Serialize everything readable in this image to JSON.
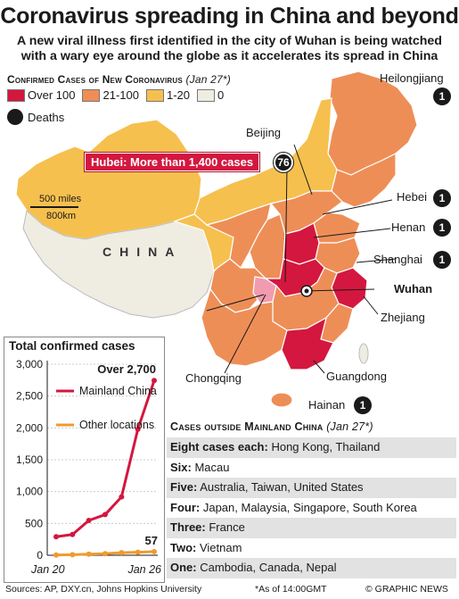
{
  "header": {
    "title": "Coronavirus spreading in China and beyond",
    "subtitle": "A new viral illness first identified in the city of Wuhan is being watched with a wary eye around the globe as it accelerates its spread in China"
  },
  "legend": {
    "title": "Confirmed Cases of New Coronavirus",
    "date": "(Jan 27*)",
    "items": [
      {
        "label": "Over 100",
        "color": "#d4173f"
      },
      {
        "label": "21-100",
        "color": "#ee8e57"
      },
      {
        "label": "1-20",
        "color": "#f6c04e"
      },
      {
        "label": "0",
        "color": "#efece2"
      }
    ],
    "deaths_label": "Deaths"
  },
  "map": {
    "country_label": "CHINA",
    "hubei_callout": "Hubei: More than 1,400 cases",
    "hubei_deaths": "76",
    "scale_miles": "500 miles",
    "scale_km": "800km",
    "regions": [
      {
        "name": "Heilongjiang",
        "deaths": "1"
      },
      {
        "name": "Beijing",
        "deaths": ""
      },
      {
        "name": "Hebei",
        "deaths": "1"
      },
      {
        "name": "Henan",
        "deaths": "1"
      },
      {
        "name": "Shanghai",
        "deaths": "1"
      },
      {
        "name": "Wuhan",
        "deaths": ""
      },
      {
        "name": "Zhejiang",
        "deaths": ""
      },
      {
        "name": "Guangdong",
        "deaths": ""
      },
      {
        "name": "Chongqing",
        "deaths": ""
      },
      {
        "name": "Hainan",
        "deaths": "1"
      }
    ]
  },
  "chart_data": {
    "type": "line",
    "title": "Total confirmed cases",
    "x_start_label": "Jan 20",
    "x_end_label": "Jan 26",
    "x": [
      "Jan 20",
      "Jan 21",
      "Jan 22",
      "Jan 23",
      "Jan 24",
      "Jan 25",
      "Jan 26"
    ],
    "ylim": [
      0,
      3000
    ],
    "yticks": [
      "0",
      "500",
      "1,000",
      "1,500",
      "2,000",
      "2,500",
      "3,000"
    ],
    "series": [
      {
        "name": "Mainland China",
        "color": "#d4173f",
        "values": [
          291,
          326,
          547,
          639,
          916,
          1979,
          2744
        ]
      },
      {
        "name": "Other locations",
        "color": "#ef9a2e",
        "values": [
          4,
          8,
          17,
          25,
          41,
          47,
          57
        ]
      }
    ],
    "annotation_main": "Over 2,700",
    "annotation_other": "57"
  },
  "outside_table": {
    "title": "Cases outside Mainland China",
    "date": "(Jan 27*)",
    "rows": [
      {
        "key": "Eight cases each:",
        "value": "Hong Kong, Thailand"
      },
      {
        "key": "Six:",
        "value": "Macau"
      },
      {
        "key": "Five:",
        "value": "Australia, Taiwan, United States"
      },
      {
        "key": "Four:",
        "value": "Japan, Malaysia, Singapore, South Korea"
      },
      {
        "key": "Three:",
        "value": "France"
      },
      {
        "key": "Two:",
        "value": "Vietnam"
      },
      {
        "key": "One:",
        "value": "Cambodia, Canada, Nepal"
      }
    ]
  },
  "footer": {
    "sources": "Sources: AP, DXY.cn, Johns Hopkins University",
    "note": "*As of 14:00GMT",
    "credit": "© GRAPHIC NEWS"
  }
}
